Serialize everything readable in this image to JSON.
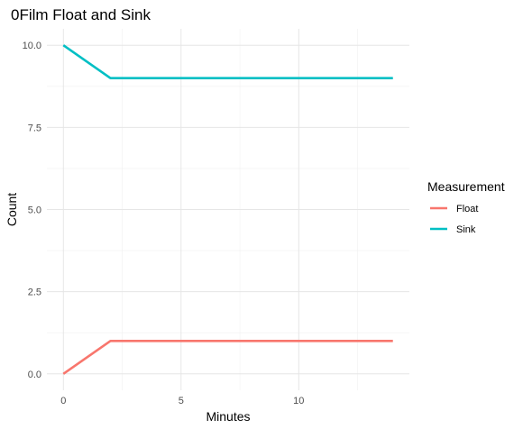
{
  "chart_data": {
    "type": "line",
    "title": "0Film Float and Sink",
    "xlabel": "Minutes",
    "ylabel": "Count",
    "xlim": [
      -0.7,
      14.7
    ],
    "ylim": [
      -0.5,
      10.5
    ],
    "x_ticks": [
      0,
      5,
      10
    ],
    "x_tick_labels": [
      "0",
      "5",
      "10"
    ],
    "x_minor_ticks": [
      2.5,
      7.5,
      12.5
    ],
    "y_ticks": [
      0,
      2.5,
      5,
      7.5,
      10
    ],
    "y_tick_labels": [
      "0.0",
      "2.5",
      "5.0",
      "7.5",
      "10.0"
    ],
    "y_minor_ticks": [
      1.25,
      3.75,
      6.25,
      8.75
    ],
    "grid": true,
    "legend": {
      "title": "Measurement",
      "position": "right"
    },
    "series": [
      {
        "name": "Float",
        "color": "#F8766D",
        "x": [
          0,
          2,
          4,
          6,
          8,
          10,
          12,
          14
        ],
        "y": [
          0,
          1,
          1,
          1,
          1,
          1,
          1,
          1
        ]
      },
      {
        "name": "Sink",
        "color": "#00BFC4",
        "x": [
          0,
          2,
          4,
          6,
          8,
          10,
          12,
          14
        ],
        "y": [
          10,
          9,
          9,
          9,
          9,
          9,
          9,
          9
        ]
      }
    ]
  }
}
